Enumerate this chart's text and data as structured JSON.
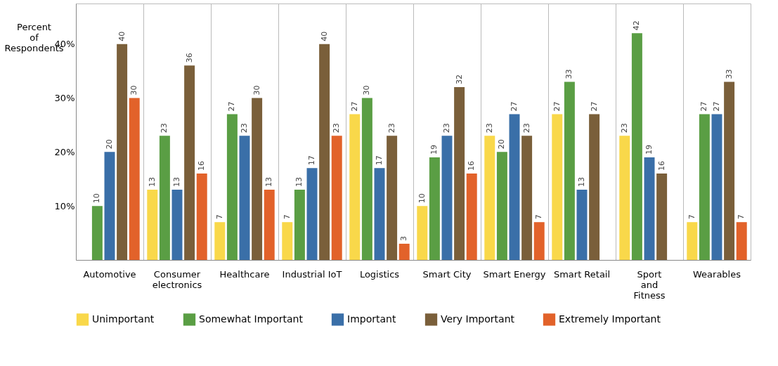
{
  "chart_data": {
    "type": "bar",
    "ylabel": "Percent of Respondents",
    "categories": [
      "Automotive",
      "Consumer electronics",
      "Healthcare",
      "Industrial IoT",
      "Logistics",
      "Smart City",
      "Smart Energy",
      "Smart Retail",
      "Sport and Fitness",
      "Wearables"
    ],
    "series": [
      {
        "name": "Unimportant",
        "color": "#f9d84a",
        "values": [
          null,
          13,
          7,
          7,
          27,
          10,
          23,
          27,
          23,
          7
        ]
      },
      {
        "name": "Somewhat Important",
        "color": "#5a9e44",
        "values": [
          10,
          23,
          27,
          13,
          30,
          19,
          20,
          33,
          42,
          27
        ]
      },
      {
        "name": "Important",
        "color": "#3a6fa8",
        "values": [
          20,
          13,
          23,
          17,
          17,
          23,
          27,
          13,
          19,
          27
        ]
      },
      {
        "name": "Very Important",
        "color": "#7a5f3a",
        "values": [
          40,
          36,
          30,
          40,
          23,
          32,
          23,
          27,
          16,
          33
        ]
      },
      {
        "name": "Extremely Important",
        "color": "#e2622a",
        "values": [
          30,
          16,
          13,
          23,
          3,
          16,
          7,
          null,
          null,
          7
        ]
      }
    ],
    "ylim": [
      0,
      47.5
    ],
    "yticks": [
      {
        "value": 10,
        "label": "10%"
      },
      {
        "value": 20,
        "label": "20%"
      },
      {
        "value": 30,
        "label": "30%"
      },
      {
        "value": 40,
        "label": "40%"
      }
    ],
    "data_labels": true,
    "grid": "x",
    "legend": "bottom"
  }
}
